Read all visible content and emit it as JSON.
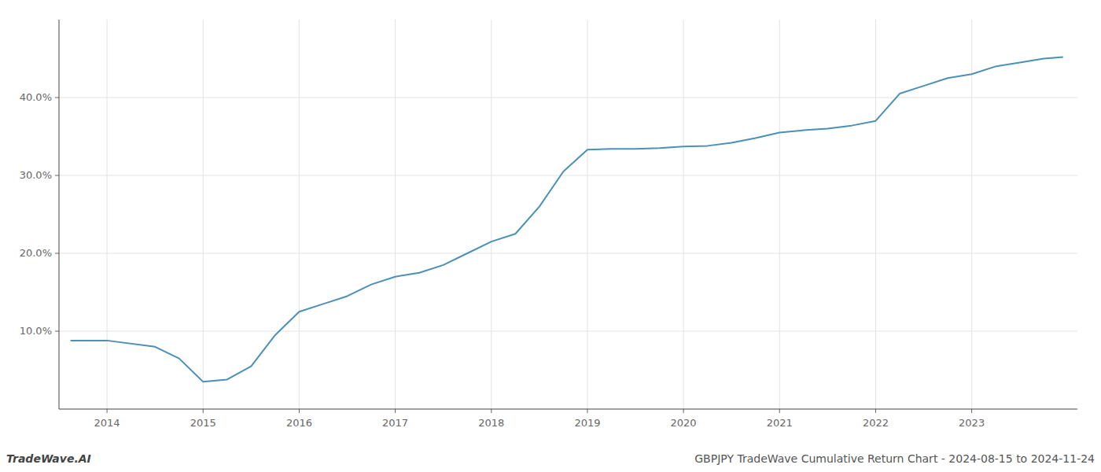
{
  "chart_data": {
    "type": "line",
    "title": "GBPJPY TradeWave Cumulative Return Chart - 2024-08-15 to 2024-11-24",
    "annotations": [
      "TradeWave.AI"
    ],
    "x": [
      2013.62,
      2014.0,
      2014.5,
      2014.75,
      2015.0,
      2015.25,
      2015.5,
      2015.75,
      2016.0,
      2016.25,
      2016.5,
      2016.75,
      2017.0,
      2017.25,
      2017.5,
      2017.75,
      2018.0,
      2018.25,
      2018.5,
      2018.75,
      2019.0,
      2019.25,
      2019.5,
      2019.75,
      2020.0,
      2020.25,
      2020.5,
      2020.75,
      2021.0,
      2021.25,
      2021.5,
      2021.75,
      2022.0,
      2022.25,
      2022.5,
      2022.75,
      2023.0,
      2023.25,
      2023.5,
      2023.75,
      2023.95
    ],
    "values": [
      8.8,
      8.8,
      8.0,
      6.5,
      3.5,
      3.8,
      5.5,
      9.5,
      12.5,
      13.5,
      14.5,
      16.0,
      17.0,
      17.5,
      18.5,
      20.0,
      21.5,
      22.5,
      26.0,
      30.5,
      33.3,
      33.4,
      33.4,
      33.5,
      33.7,
      33.8,
      34.2,
      34.8,
      35.5,
      35.8,
      36.0,
      36.4,
      37.0,
      40.5,
      41.5,
      42.5,
      43.0,
      44.0,
      44.5,
      45.0,
      45.2
    ],
    "color": "#4a90b8",
    "xlim": [
      2013.5,
      2024.1
    ],
    "ylim": [
      0,
      50
    ],
    "xticks": [
      2014,
      2015,
      2016,
      2017,
      2018,
      2019,
      2020,
      2021,
      2022,
      2023
    ],
    "yticks": [
      {
        "value": 10,
        "label": "10.0%"
      },
      {
        "value": 20,
        "label": "20.0%"
      },
      {
        "value": 30,
        "label": "30.0%"
      },
      {
        "value": 40,
        "label": "40.0%"
      }
    ],
    "grid": true
  }
}
